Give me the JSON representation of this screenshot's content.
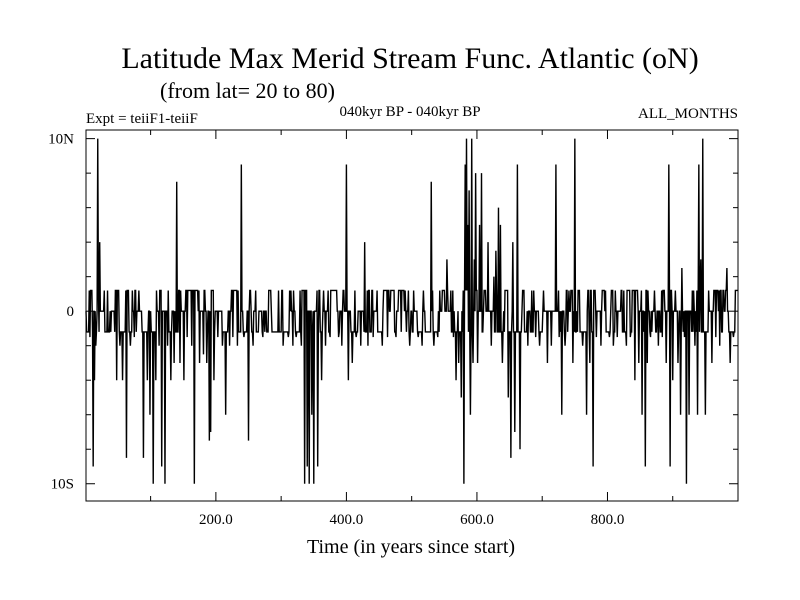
{
  "chart_data": {
    "type": "line",
    "title": "Latitude Max Merid Stream Func. Atlantic (oN)",
    "subtitle": "(from lat= 20 to 80)",
    "annotations": {
      "left": "Expt = teiiF1-teiiF",
      "center": "040kyr BP - 040kyr BP",
      "right": "ALL_MONTHS"
    },
    "xlabel": "Time (in years since start)",
    "ylabel": "",
    "xlim": [
      1,
      1000
    ],
    "ylim": [
      -11,
      10.5
    ],
    "xticks": [
      200,
      400,
      600,
      800
    ],
    "xtick_labels": [
      "200.0",
      "400.0",
      "600.0",
      "800.0"
    ],
    "yticks": [
      10,
      0,
      -10
    ],
    "ytick_labels": [
      "10N",
      "0",
      "10S"
    ],
    "grid": false,
    "line_color": "#000000",
    "series": [
      {
        "x_start": 1,
        "x_step": 1,
        "base_levels": [
          1.2,
          0,
          -1.2
        ],
        "spikes": [
          [
            7,
            -1.5
          ],
          [
            12,
            -9
          ],
          [
            14,
            -4
          ],
          [
            16,
            -2
          ],
          [
            19,
            10
          ],
          [
            22,
            4
          ],
          [
            29,
            1.2
          ],
          [
            34,
            1.2
          ],
          [
            40,
            0
          ],
          [
            48,
            -4
          ],
          [
            53,
            -2
          ],
          [
            57,
            -4
          ],
          [
            63,
            -8.5
          ],
          [
            69,
            -2
          ],
          [
            75,
            -1.5
          ],
          [
            82,
            1.2
          ],
          [
            89,
            -8.5
          ],
          [
            95,
            -4
          ],
          [
            99,
            -6
          ],
          [
            104,
            -10
          ],
          [
            108,
            -4
          ],
          [
            113,
            -2
          ],
          [
            117,
            -9
          ],
          [
            122,
            -10
          ],
          [
            126,
            -2
          ],
          [
            131,
            -4
          ],
          [
            136,
            -3
          ],
          [
            140,
            7.5
          ],
          [
            145,
            -3
          ],
          [
            151,
            -4
          ],
          [
            156,
            -1.5
          ],
          [
            163,
            -2
          ],
          [
            167,
            -10
          ],
          [
            175,
            -3
          ],
          [
            181,
            -2.5
          ],
          [
            186,
            -3
          ],
          [
            190,
            -7.5
          ],
          [
            192,
            -7
          ],
          [
            197,
            -4
          ],
          [
            203,
            -1.5
          ],
          [
            210,
            -2
          ],
          [
            215,
            -6
          ],
          [
            221,
            -2
          ],
          [
            226,
            -1.5
          ],
          [
            233,
            -2
          ],
          [
            239,
            8.5
          ],
          [
            243,
            -1.5
          ],
          [
            250,
            -7.5
          ],
          [
            257,
            -2
          ],
          [
            264,
            -1.2
          ],
          [
            272,
            -1.5
          ],
          [
            281,
            1.2
          ],
          [
            290,
            -1.2
          ],
          [
            296,
            1.2
          ],
          [
            303,
            -2
          ],
          [
            311,
            -1.5
          ],
          [
            318,
            -2
          ],
          [
            323,
            -1.5
          ],
          [
            331,
            -2
          ],
          [
            336,
            -10
          ],
          [
            340,
            -9
          ],
          [
            343,
            -10
          ],
          [
            347,
            -6
          ],
          [
            350,
            -10
          ],
          [
            356,
            -9
          ],
          [
            362,
            -4
          ],
          [
            368,
            -2
          ],
          [
            375,
            -1.5
          ],
          [
            383,
            1.2
          ],
          [
            388,
            -1.5
          ],
          [
            393,
            -2
          ],
          [
            400,
            8.5
          ],
          [
            403,
            -4
          ],
          [
            409,
            -3
          ],
          [
            415,
            -1.5
          ],
          [
            422,
            -2
          ],
          [
            428,
            4
          ],
          [
            433,
            -2
          ],
          [
            441,
            -1.5
          ],
          [
            447,
            1.2
          ],
          [
            455,
            -2
          ],
          [
            463,
            -1.5
          ],
          [
            470,
            1.2
          ],
          [
            476,
            -1.5
          ],
          [
            484,
            -1.2
          ],
          [
            490,
            1.2
          ],
          [
            497,
            -2
          ],
          [
            503,
            1.2
          ],
          [
            510,
            -1.5
          ],
          [
            516,
            -2
          ],
          [
            524,
            -1.2
          ],
          [
            530,
            7.5
          ],
          [
            534,
            -2
          ],
          [
            540,
            -1.5
          ],
          [
            547,
            1.2
          ],
          [
            554,
            3
          ],
          [
            560,
            1.2
          ],
          [
            564,
            -1.5
          ],
          [
            568,
            -4
          ],
          [
            572,
            -3
          ],
          [
            576,
            -5
          ],
          [
            580,
            -10
          ],
          [
            582,
            8.5
          ],
          [
            584,
            10
          ],
          [
            586,
            5
          ],
          [
            588,
            7
          ],
          [
            590,
            -6
          ],
          [
            592,
            10
          ],
          [
            594,
            -3
          ],
          [
            596,
            3
          ],
          [
            598,
            8
          ],
          [
            601,
            -3
          ],
          [
            604,
            5
          ],
          [
            607,
            8
          ],
          [
            611,
            1.2
          ],
          [
            617,
            4
          ],
          [
            622,
            -2
          ],
          [
            626,
            2
          ],
          [
            629,
            3.5
          ],
          [
            633,
            6
          ],
          [
            636,
            5
          ],
          [
            639,
            -3
          ],
          [
            643,
            1.2
          ],
          [
            648,
            -5
          ],
          [
            652,
            -8.5
          ],
          [
            655,
            4
          ],
          [
            658,
            -7
          ],
          [
            662,
            8.5
          ],
          [
            666,
            -8
          ],
          [
            672,
            1.2
          ],
          [
            678,
            -2
          ],
          [
            684,
            1.2
          ],
          [
            690,
            -1.5
          ],
          [
            696,
            -2
          ],
          [
            702,
            1.2
          ],
          [
            708,
            -3
          ],
          [
            714,
            -2
          ],
          [
            721,
            8.5
          ],
          [
            726,
            -1.5
          ],
          [
            730,
            -6
          ],
          [
            735,
            -2
          ],
          [
            741,
            1.2
          ],
          [
            747,
            -3
          ],
          [
            750,
            10
          ],
          [
            755,
            1.2
          ],
          [
            762,
            -2
          ],
          [
            768,
            -6
          ],
          [
            773,
            -3
          ],
          [
            778,
            -9
          ],
          [
            783,
            -1.5
          ],
          [
            790,
            -2
          ],
          [
            797,
            1.2
          ],
          [
            803,
            -1.5
          ],
          [
            809,
            -2
          ],
          [
            815,
            -1.5
          ],
          [
            822,
            1.2
          ],
          [
            829,
            -2
          ],
          [
            835,
            -1.5
          ],
          [
            842,
            -4
          ],
          [
            848,
            -3
          ],
          [
            853,
            -6
          ],
          [
            858,
            -9
          ],
          [
            861,
            -3
          ],
          [
            866,
            -1.5
          ],
          [
            872,
            1.2
          ],
          [
            878,
            -2
          ],
          [
            884,
            -1.5
          ],
          [
            890,
            -3
          ],
          [
            894,
            8.5
          ],
          [
            896,
            -9
          ],
          [
            900,
            -4
          ],
          [
            904,
            1.2
          ],
          [
            908,
            -3
          ],
          [
            912,
            -6
          ],
          [
            914,
            2.5
          ],
          [
            918,
            -1.5
          ],
          [
            921,
            -10
          ],
          [
            925,
            -6
          ],
          [
            930,
            1.2
          ],
          [
            934,
            -2
          ],
          [
            938,
            -6
          ],
          [
            940,
            8.5
          ],
          [
            943,
            3
          ],
          [
            946,
            10
          ],
          [
            950,
            -6
          ],
          [
            955,
            1.2
          ],
          [
            960,
            -3
          ],
          [
            966,
            -1.5
          ],
          [
            972,
            -2
          ],
          [
            978,
            1.2
          ],
          [
            983,
            2.5
          ],
          [
            988,
            -3
          ],
          [
            993,
            -1.5
          ],
          [
            997,
            1.2
          ]
        ]
      }
    ]
  }
}
